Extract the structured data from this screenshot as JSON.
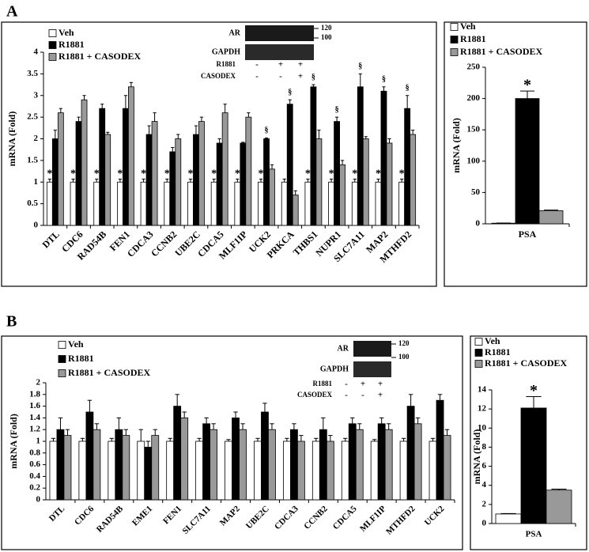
{
  "panels": [
    {
      "label": "A",
      "blot": {
        "bands": [
          "AR",
          "GAPDH"
        ],
        "sizes": [
          "120",
          "100"
        ],
        "rows": [
          {
            "name": "R1881",
            "signs": [
              "-",
              "+",
              "+"
            ]
          },
          {
            "name": "CASODEX",
            "signs": [
              "-",
              "-",
              "+"
            ]
          }
        ]
      }
    },
    {
      "label": "B",
      "blot": {
        "bands": [
          "AR",
          "GAPDH"
        ],
        "sizes": [
          "120",
          "100"
        ],
        "rows": [
          {
            "name": "R1881",
            "signs": [
              "-",
              "+",
              "+"
            ]
          },
          {
            "name": "CASODEX",
            "signs": [
              "-",
              "-",
              "+"
            ]
          }
        ]
      }
    }
  ],
  "chart_data": [
    {
      "type": "bar",
      "y_label": "mRNA (Fold)",
      "categories": [
        "DTL",
        "CDC6",
        "RAD54B",
        "FEN1",
        "CDCA3",
        "CCNB2",
        "UBE2C",
        "CDCA5",
        "MLF1IP",
        "UCK2",
        "PRKCA",
        "THBS1",
        "NUPR1",
        "SLC7A11",
        "MAP2",
        "MTHFD2"
      ],
      "series": [
        {
          "name": "Veh",
          "color": "#ffffff",
          "values": [
            1,
            1,
            1,
            1,
            1,
            1,
            1,
            1,
            1,
            1,
            1,
            1,
            1,
            1,
            1,
            1
          ],
          "errors": [
            0.07,
            0.07,
            0.07,
            0.07,
            0.07,
            0.07,
            0.07,
            0.07,
            0.07,
            0.07,
            0.07,
            0.07,
            0.07,
            0.07,
            0.07,
            0.07
          ],
          "markers": [
            "*",
            "*",
            "*",
            "*",
            "*",
            "*",
            "*",
            "*",
            "*",
            "*",
            null,
            "*",
            "*",
            "*",
            "*",
            "*"
          ]
        },
        {
          "name": "R1881",
          "color": "#000000",
          "values": [
            2.0,
            2.4,
            2.7,
            2.7,
            2.1,
            1.7,
            2.1,
            1.9,
            1.9,
            2.0,
            2.8,
            3.2,
            2.4,
            3.2,
            3.1,
            2.7
          ],
          "errors": [
            0.2,
            0.1,
            0.1,
            0.3,
            0.2,
            0.1,
            0.2,
            0.1,
            0.02,
            0.02,
            0.1,
            0.05,
            0.1,
            0.3,
            0.1,
            0.3
          ],
          "markers": [
            null,
            null,
            null,
            null,
            null,
            null,
            null,
            null,
            null,
            "§",
            "§",
            "§",
            "§",
            "§",
            "§",
            "§"
          ]
        },
        {
          "name": "R1881 + CASODEX",
          "color": "#999999",
          "values": [
            2.6,
            2.9,
            2.1,
            3.2,
            2.4,
            2.0,
            2.4,
            2.6,
            2.5,
            1.3,
            0.7,
            2.0,
            1.4,
            2.0,
            1.9,
            2.1
          ],
          "errors": [
            0.1,
            0.1,
            0.05,
            0.1,
            0.2,
            0.1,
            0.1,
            0.2,
            0.1,
            0.1,
            0.1,
            0.2,
            0.1,
            0.05,
            0.1,
            0.1
          ],
          "markers": [
            null,
            null,
            null,
            null,
            null,
            null,
            null,
            null,
            null,
            null,
            null,
            null,
            null,
            null,
            null,
            null
          ]
        }
      ],
      "ylim": [
        0,
        4
      ],
      "yticks": [
        0,
        0.5,
        1,
        1.5,
        2,
        2.5,
        3,
        3.5,
        4
      ]
    },
    {
      "type": "bar",
      "y_label": "mRNA (Fold)",
      "categories": [
        "PSA"
      ],
      "series": [
        {
          "name": "Veh",
          "color": "#ffffff",
          "values": [
            1
          ],
          "errors": [
            0.3
          ],
          "markers": [
            null
          ]
        },
        {
          "name": "R1881",
          "color": "#000000",
          "values": [
            200
          ],
          "errors": [
            12
          ],
          "markers": [
            "*"
          ]
        },
        {
          "name": "R1881 + CASODEX",
          "color": "#999999",
          "values": [
            21
          ],
          "errors": [
            1
          ],
          "markers": [
            null
          ]
        }
      ],
      "ylim": [
        0,
        250
      ],
      "yticks": [
        0,
        50,
        100,
        150,
        200,
        250
      ]
    },
    {
      "type": "bar",
      "y_label": "mRNA (Fold)",
      "categories": [
        "DTL",
        "CDC6",
        "RAD54B",
        "EME1",
        "FEN1",
        "SLC7A11",
        "MAP2",
        "UBE2C",
        "CDCA3",
        "CCNB2",
        "CDCA5",
        "MLF1IP",
        "MTHFD2",
        "UCK2"
      ],
      "series": [
        {
          "name": "Veh",
          "color": "#ffffff",
          "values": [
            1,
            1,
            1,
            1,
            1,
            1,
            1,
            1,
            1,
            1,
            1,
            1,
            1,
            1
          ],
          "errors": [
            0.05,
            0.05,
            0.05,
            0.2,
            0.05,
            0.05,
            0.03,
            0.05,
            0.05,
            0.05,
            0.05,
            0.03,
            0.05,
            0.05
          ]
        },
        {
          "name": "R1881",
          "color": "#000000",
          "values": [
            1.2,
            1.5,
            1.2,
            0.9,
            1.6,
            1.3,
            1.4,
            1.5,
            1.2,
            1.2,
            1.3,
            1.3,
            1.6,
            1.7
          ],
          "errors": [
            0.2,
            0.2,
            0.2,
            0.1,
            0.2,
            0.1,
            0.1,
            0.15,
            0.1,
            0.2,
            0.1,
            0.1,
            0.2,
            0.1
          ]
        },
        {
          "name": "R1881 + CASODEX",
          "color": "#999999",
          "values": [
            1.1,
            1.2,
            1.1,
            1.1,
            1.4,
            1.2,
            1.2,
            1.2,
            1.0,
            1.0,
            1.2,
            1.2,
            1.3,
            1.1
          ],
          "errors": [
            0.1,
            0.1,
            0.1,
            0.1,
            0.1,
            0.1,
            0.1,
            0.1,
            0.1,
            0.1,
            0.1,
            0.1,
            0.1,
            0.1
          ]
        }
      ],
      "ylim": [
        0,
        2
      ],
      "yticks": [
        0,
        0.2,
        0.4,
        0.6,
        0.8,
        1,
        1.2,
        1.4,
        1.6,
        1.8,
        2
      ]
    },
    {
      "type": "bar",
      "y_label": "mRNA (Fold)",
      "categories": [
        "PSA"
      ],
      "series": [
        {
          "name": "Veh",
          "color": "#ffffff",
          "values": [
            1
          ],
          "errors": [
            0.05
          ],
          "markers": [
            null
          ]
        },
        {
          "name": "R1881",
          "color": "#000000",
          "values": [
            12.1
          ],
          "errors": [
            1.2
          ],
          "markers": [
            "*"
          ]
        },
        {
          "name": "R1881 + CASODEX",
          "color": "#999999",
          "values": [
            3.5
          ],
          "errors": [
            0.1
          ],
          "markers": [
            null
          ]
        }
      ],
      "ylim": [
        0,
        14
      ],
      "yticks": [
        0,
        2,
        4,
        6,
        8,
        10,
        12,
        14
      ]
    }
  ]
}
